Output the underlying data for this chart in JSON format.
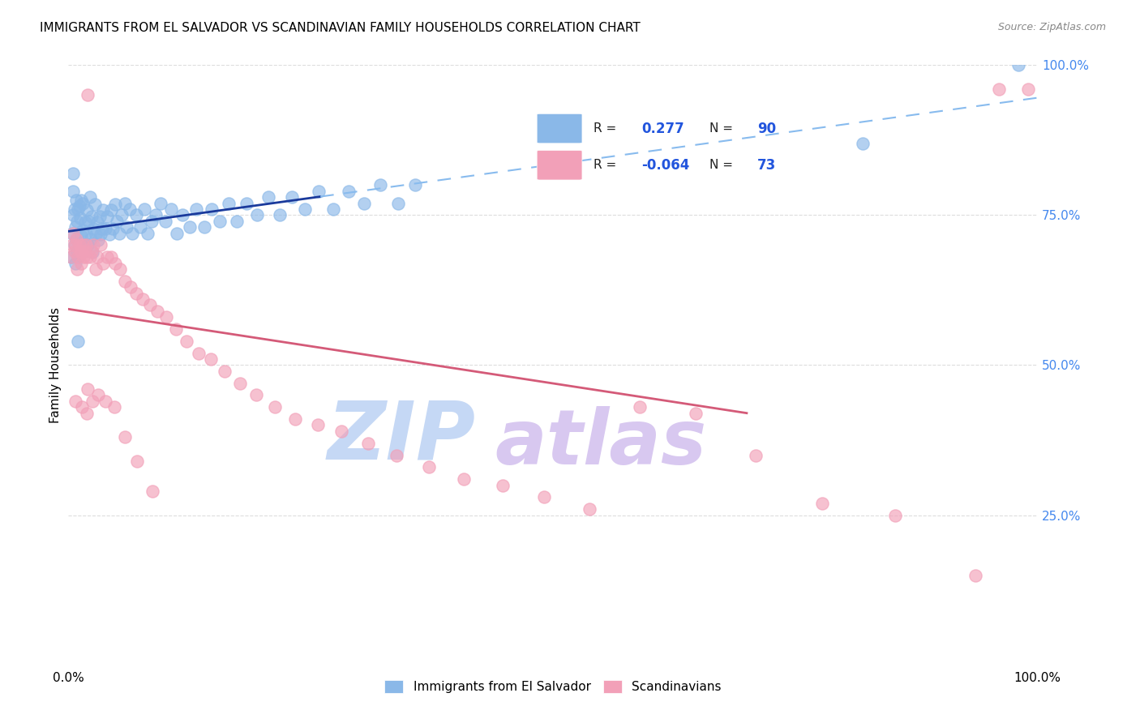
{
  "title": "IMMIGRANTS FROM EL SALVADOR VS SCANDINAVIAN FAMILY HOUSEHOLDS CORRELATION CHART",
  "source": "Source: ZipAtlas.com",
  "ylabel": "Family Households",
  "right_yticks": [
    "100.0%",
    "75.0%",
    "50.0%",
    "25.0%"
  ],
  "right_ytick_vals": [
    1.0,
    0.75,
    0.5,
    0.25
  ],
  "legend_blue_label": "Immigrants from El Salvador",
  "legend_pink_label": "Scandinavians",
  "R_blue": 0.277,
  "N_blue": 90,
  "R_pink": -0.064,
  "N_pink": 73,
  "blue_color": "#8AB8E8",
  "pink_color": "#F2A0B8",
  "blue_line_color": "#1A3A9C",
  "pink_line_color": "#D45A78",
  "dashed_line_color": "#88BBEE",
  "watermark_zip_color": "#C5D8F5",
  "watermark_atlas_color": "#D8C8F0",
  "background_color": "#FFFFFF",
  "grid_color": "#DDDDDD",
  "right_tick_color": "#4488EE",
  "blue_x": [
    0.003,
    0.004,
    0.005,
    0.005,
    0.006,
    0.006,
    0.007,
    0.007,
    0.008,
    0.008,
    0.009,
    0.009,
    0.01,
    0.01,
    0.011,
    0.011,
    0.012,
    0.012,
    0.013,
    0.013,
    0.014,
    0.015,
    0.015,
    0.016,
    0.017,
    0.018,
    0.019,
    0.02,
    0.021,
    0.022,
    0.023,
    0.024,
    0.025,
    0.026,
    0.027,
    0.028,
    0.03,
    0.031,
    0.032,
    0.033,
    0.035,
    0.036,
    0.038,
    0.04,
    0.042,
    0.044,
    0.046,
    0.048,
    0.05,
    0.052,
    0.055,
    0.058,
    0.06,
    0.063,
    0.066,
    0.07,
    0.074,
    0.078,
    0.082,
    0.086,
    0.09,
    0.095,
    0.1,
    0.106,
    0.112,
    0.118,
    0.125,
    0.132,
    0.14,
    0.148,
    0.156,
    0.165,
    0.174,
    0.184,
    0.195,
    0.206,
    0.218,
    0.231,
    0.244,
    0.258,
    0.273,
    0.289,
    0.305,
    0.322,
    0.34,
    0.358,
    0.01,
    0.005,
    0.82,
    0.98
  ],
  "blue_y": [
    0.68,
    0.72,
    0.75,
    0.79,
    0.7,
    0.76,
    0.67,
    0.73,
    0.71,
    0.775,
    0.69,
    0.74,
    0.68,
    0.76,
    0.705,
    0.765,
    0.695,
    0.745,
    0.715,
    0.775,
    0.688,
    0.725,
    0.77,
    0.698,
    0.738,
    0.72,
    0.758,
    0.7,
    0.74,
    0.78,
    0.71,
    0.748,
    0.688,
    0.728,
    0.768,
    0.718,
    0.738,
    0.708,
    0.748,
    0.718,
    0.728,
    0.758,
    0.728,
    0.748,
    0.718,
    0.758,
    0.728,
    0.768,
    0.74,
    0.72,
    0.75,
    0.77,
    0.73,
    0.76,
    0.72,
    0.75,
    0.73,
    0.76,
    0.72,
    0.74,
    0.75,
    0.77,
    0.74,
    0.76,
    0.72,
    0.75,
    0.73,
    0.76,
    0.73,
    0.76,
    0.74,
    0.77,
    0.74,
    0.77,
    0.75,
    0.78,
    0.75,
    0.78,
    0.76,
    0.79,
    0.76,
    0.79,
    0.77,
    0.8,
    0.77,
    0.8,
    0.54,
    0.82,
    0.87,
    1.0
  ],
  "pink_x": [
    0.003,
    0.004,
    0.005,
    0.006,
    0.007,
    0.008,
    0.009,
    0.01,
    0.011,
    0.012,
    0.013,
    0.014,
    0.015,
    0.016,
    0.017,
    0.018,
    0.019,
    0.02,
    0.022,
    0.024,
    0.026,
    0.028,
    0.03,
    0.033,
    0.036,
    0.04,
    0.044,
    0.048,
    0.053,
    0.058,
    0.064,
    0.07,
    0.077,
    0.084,
    0.092,
    0.101,
    0.111,
    0.122,
    0.134,
    0.147,
    0.161,
    0.177,
    0.194,
    0.213,
    0.234,
    0.257,
    0.282,
    0.309,
    0.339,
    0.372,
    0.408,
    0.448,
    0.491,
    0.538,
    0.59,
    0.647,
    0.709,
    0.778,
    0.853,
    0.936,
    0.96,
    0.02,
    0.007,
    0.014,
    0.019,
    0.025,
    0.031,
    0.038,
    0.047,
    0.058,
    0.071,
    0.087,
    0.99
  ],
  "pink_y": [
    0.68,
    0.7,
    0.72,
    0.69,
    0.7,
    0.71,
    0.66,
    0.68,
    0.7,
    0.69,
    0.67,
    0.69,
    0.7,
    0.68,
    0.69,
    0.7,
    0.68,
    0.95,
    0.68,
    0.69,
    0.7,
    0.66,
    0.68,
    0.7,
    0.67,
    0.68,
    0.68,
    0.67,
    0.66,
    0.64,
    0.63,
    0.62,
    0.61,
    0.6,
    0.59,
    0.58,
    0.56,
    0.54,
    0.52,
    0.51,
    0.49,
    0.47,
    0.45,
    0.43,
    0.41,
    0.4,
    0.39,
    0.37,
    0.35,
    0.33,
    0.31,
    0.3,
    0.28,
    0.26,
    0.43,
    0.42,
    0.35,
    0.27,
    0.25,
    0.15,
    0.96,
    0.46,
    0.44,
    0.43,
    0.42,
    0.44,
    0.45,
    0.44,
    0.43,
    0.38,
    0.34,
    0.29,
    0.96
  ]
}
